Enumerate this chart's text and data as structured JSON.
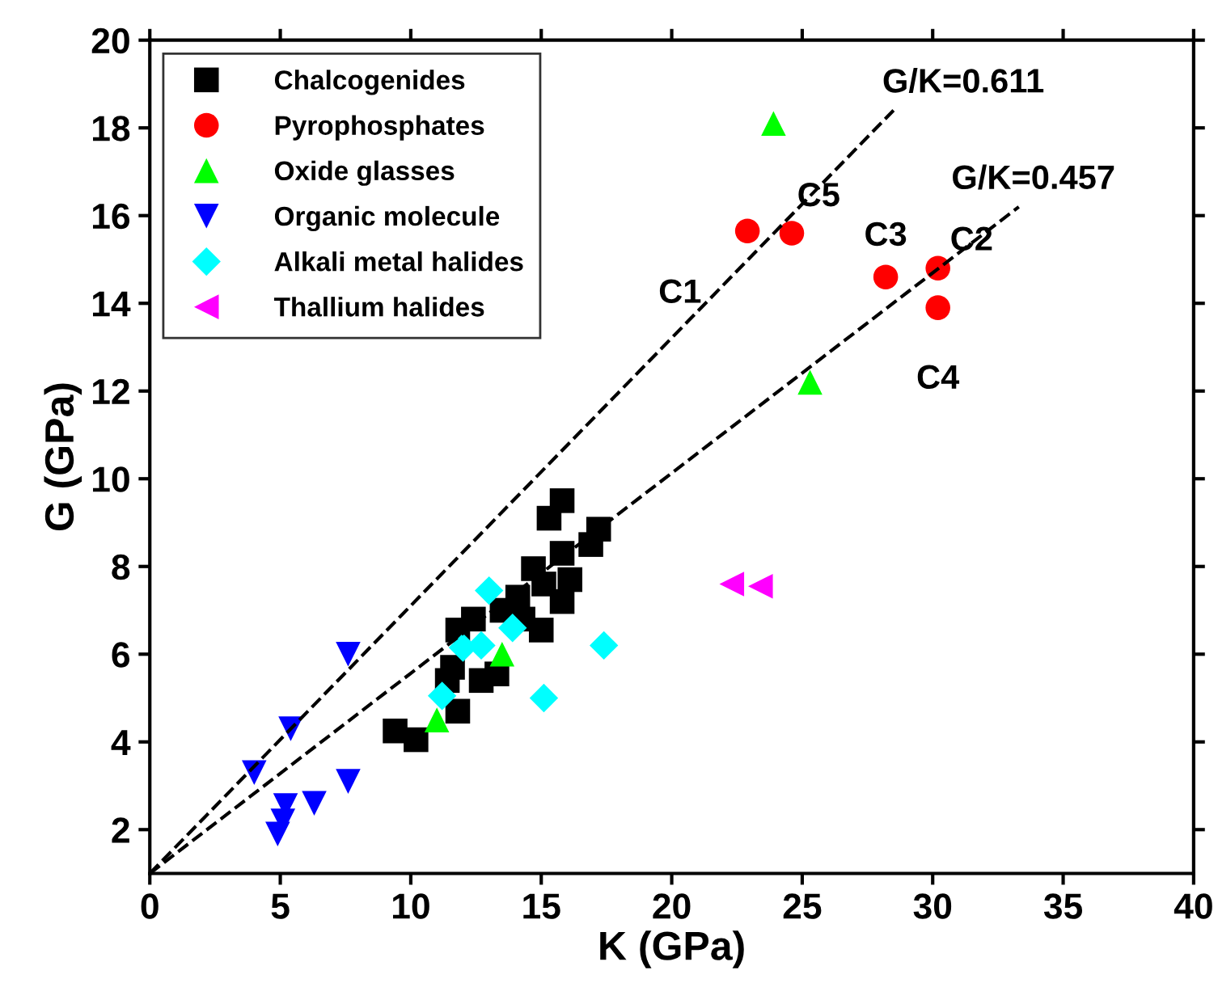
{
  "chart_data": {
    "type": "scatter",
    "xlabel": "K (GPa)",
    "ylabel": "G (GPa)",
    "xlim": [
      0,
      40
    ],
    "ylim": [
      1,
      20
    ],
    "xticks": [
      0,
      5,
      10,
      15,
      20,
      25,
      30,
      35,
      40
    ],
    "yticks": [
      2,
      4,
      6,
      8,
      10,
      12,
      14,
      16,
      18,
      20
    ],
    "grid": false,
    "legend": "top left",
    "series": [
      {
        "name": "Chalcogenides",
        "color": "#000000",
        "marker": "square",
        "x": [
          15.8,
          15.3,
          17.2,
          16.9,
          15.8,
          14.7,
          16.1,
          15.1,
          15.8,
          15.0,
          14.3,
          14.1,
          13.5,
          12.4,
          11.8,
          13.3,
          12.7,
          11.6,
          11.8,
          9.4,
          10.2,
          11.4
        ],
        "values": [
          9.5,
          9.1,
          8.85,
          8.5,
          8.3,
          7.95,
          7.7,
          7.6,
          7.2,
          6.55,
          6.8,
          7.3,
          7.0,
          6.8,
          6.55,
          5.55,
          5.4,
          5.7,
          4.7,
          4.25,
          4.05,
          5.4
        ]
      },
      {
        "name": "Pyrophosphates",
        "color": "#ff0000",
        "marker": "circle",
        "x": [
          22.9,
          24.6,
          28.2,
          30.2,
          30.2
        ],
        "values": [
          15.65,
          15.6,
          14.6,
          14.8,
          13.9
        ]
      },
      {
        "name": "Oxide glasses",
        "color": "#00ff00",
        "marker": "triangle",
        "x": [
          23.9,
          25.3,
          11.0,
          13.5
        ],
        "values": [
          18.1,
          12.2,
          4.5,
          6.0
        ]
      },
      {
        "name": "Organic molecule",
        "color": "#0000ff",
        "marker": "triangle_down",
        "x": [
          7.6,
          5.4,
          4.0,
          7.6,
          6.3,
          5.2,
          4.9,
          5.1
        ],
        "values": [
          6.0,
          4.3,
          3.3,
          3.1,
          2.6,
          2.55,
          1.9,
          2.2
        ]
      },
      {
        "name": "Alkali metal halides",
        "color": "#00ffff",
        "marker": "diamond",
        "x": [
          13.0,
          13.9,
          12.0,
          12.7,
          11.2,
          17.4,
          15.1
        ],
        "values": [
          7.45,
          6.6,
          6.15,
          6.2,
          5.05,
          6.2,
          5.0
        ]
      },
      {
        "name": "Thallium halides",
        "color": "#ff00ff",
        "marker": "triangle_left",
        "x": [
          22.3,
          23.4
        ],
        "values": [
          7.6,
          7.55
        ]
      },
      {
        "type": "line",
        "color": "#000000",
        "line_style": "dashed",
        "x": [
          0,
          28.5
        ],
        "values": [
          1,
          18.4
        ]
      },
      {
        "type": "line",
        "color": "#000000",
        "line_style": "dashed",
        "x": [
          0,
          33.3
        ],
        "values": [
          1,
          16.2
        ]
      }
    ],
    "annotations": [
      {
        "text": "G/K=0.611",
        "x": 28.5,
        "y": 18.4
      },
      {
        "text": "G/K=0.457",
        "x": 33.3,
        "y": 16.2
      },
      {
        "text": "C1",
        "x": 22.9,
        "y": 15.65
      },
      {
        "text": "C2",
        "x": 30.2,
        "y": 14.8
      },
      {
        "text": "C3",
        "x": 28.2,
        "y": 14.6
      },
      {
        "text": "C4",
        "x": 30.2,
        "y": 13.9
      },
      {
        "text": "C5",
        "x": 24.6,
        "y": 15.6
      }
    ]
  }
}
